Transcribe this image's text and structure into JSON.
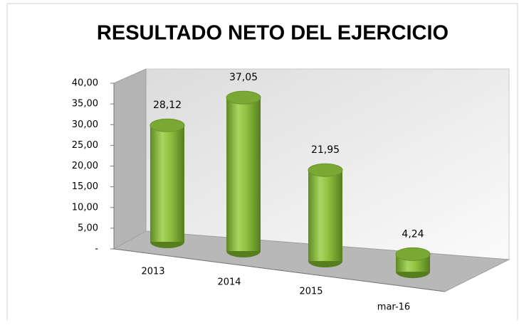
{
  "chart_data": {
    "type": "bar",
    "title": "RESULTADO NETO DEL EJERCICIO",
    "categories": [
      "2013",
      "2014",
      "2015",
      "mar-16"
    ],
    "values": [
      28.12,
      37.05,
      21.95,
      4.24
    ],
    "value_labels": [
      "28,12",
      "37,05",
      "21,95",
      "4,24"
    ],
    "color": "#8cbf3f",
    "ylim": [
      0,
      40
    ],
    "yticks": [
      {
        "value": 0,
        "label": "-"
      },
      {
        "value": 5,
        "label": "5,00"
      },
      {
        "value": 10,
        "label": "10,00"
      },
      {
        "value": 15,
        "label": "15,00"
      },
      {
        "value": 20,
        "label": "20,00"
      },
      {
        "value": 25,
        "label": "25,00"
      },
      {
        "value": 30,
        "label": "30,00"
      },
      {
        "value": 35,
        "label": "35,00"
      },
      {
        "value": 40,
        "label": "40,00"
      }
    ]
  }
}
